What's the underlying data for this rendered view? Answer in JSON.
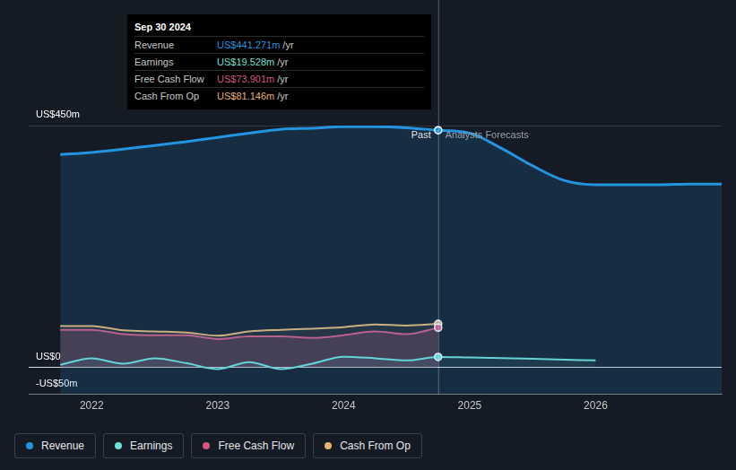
{
  "chart_data": {
    "type": "line",
    "x": [
      2021.75,
      2022,
      2022.25,
      2022.5,
      2022.75,
      2023,
      2023.25,
      2023.5,
      2023.75,
      2024,
      2024.25,
      2024.5,
      2024.75,
      2025,
      2025.25,
      2025.5,
      2025.75,
      2026,
      2026.25,
      2026.5,
      2026.75,
      2027
    ],
    "series": [
      {
        "name": "Revenue",
        "color": "#2394df",
        "values": [
          396,
          400,
          406,
          413,
          420,
          428,
          436,
          443,
          445,
          448,
          448,
          446,
          441.271,
          436,
          408,
          375,
          348,
          340,
          340,
          340,
          341,
          341
        ]
      },
      {
        "name": "Earnings",
        "color": "#6fe0d6",
        "values": [
          5,
          17,
          7,
          17,
          8,
          -3,
          10,
          -3,
          7,
          20,
          17,
          13,
          19.528,
          18.5,
          17.5,
          16,
          14.5,
          13,
          null,
          null,
          null,
          null
        ]
      },
      {
        "name": "Free Cash Flow",
        "color": "#d4577f",
        "values": [
          70,
          70,
          62,
          60,
          60,
          53,
          58,
          58,
          55,
          60,
          67,
          62,
          73.901,
          null,
          null,
          null,
          null,
          null,
          null,
          null,
          null,
          null
        ]
      },
      {
        "name": "Cash From Op",
        "color": "#e8b36f",
        "values": [
          77,
          77,
          69,
          67,
          65,
          59,
          67,
          70,
          72,
          75,
          80,
          78,
          81.146,
          null,
          null,
          null,
          null,
          null,
          null,
          null,
          null,
          null
        ]
      }
    ],
    "xlim": [
      2021.5,
      2027
    ],
    "xticks": [
      2022,
      2023,
      2024,
      2025,
      2026
    ],
    "ylim": [
      -50,
      450
    ],
    "yticks": [
      {
        "value": -50,
        "label": "-US$50m"
      },
      {
        "value": 0,
        "label": "US$0"
      },
      {
        "value": 450,
        "label": "US$450m"
      }
    ],
    "grid": true,
    "legend": "bottom-left",
    "annotations": {
      "divider": 2024.75,
      "past_label": "Past",
      "forecast_label": "Analysts Forecasts",
      "tooltip": {
        "title": "Sep 30 2024",
        "rows": [
          {
            "label": "Revenue",
            "value": "US$441.271m",
            "unit": "/yr"
          },
          {
            "label": "Earnings",
            "value": "US$19.528m",
            "unit": "/yr"
          },
          {
            "label": "Free Cash Flow",
            "value": "US$73.901m",
            "unit": "/yr"
          },
          {
            "label": "Cash From Op",
            "value": "US$81.146m",
            "unit": "/yr"
          }
        ]
      }
    }
  }
}
